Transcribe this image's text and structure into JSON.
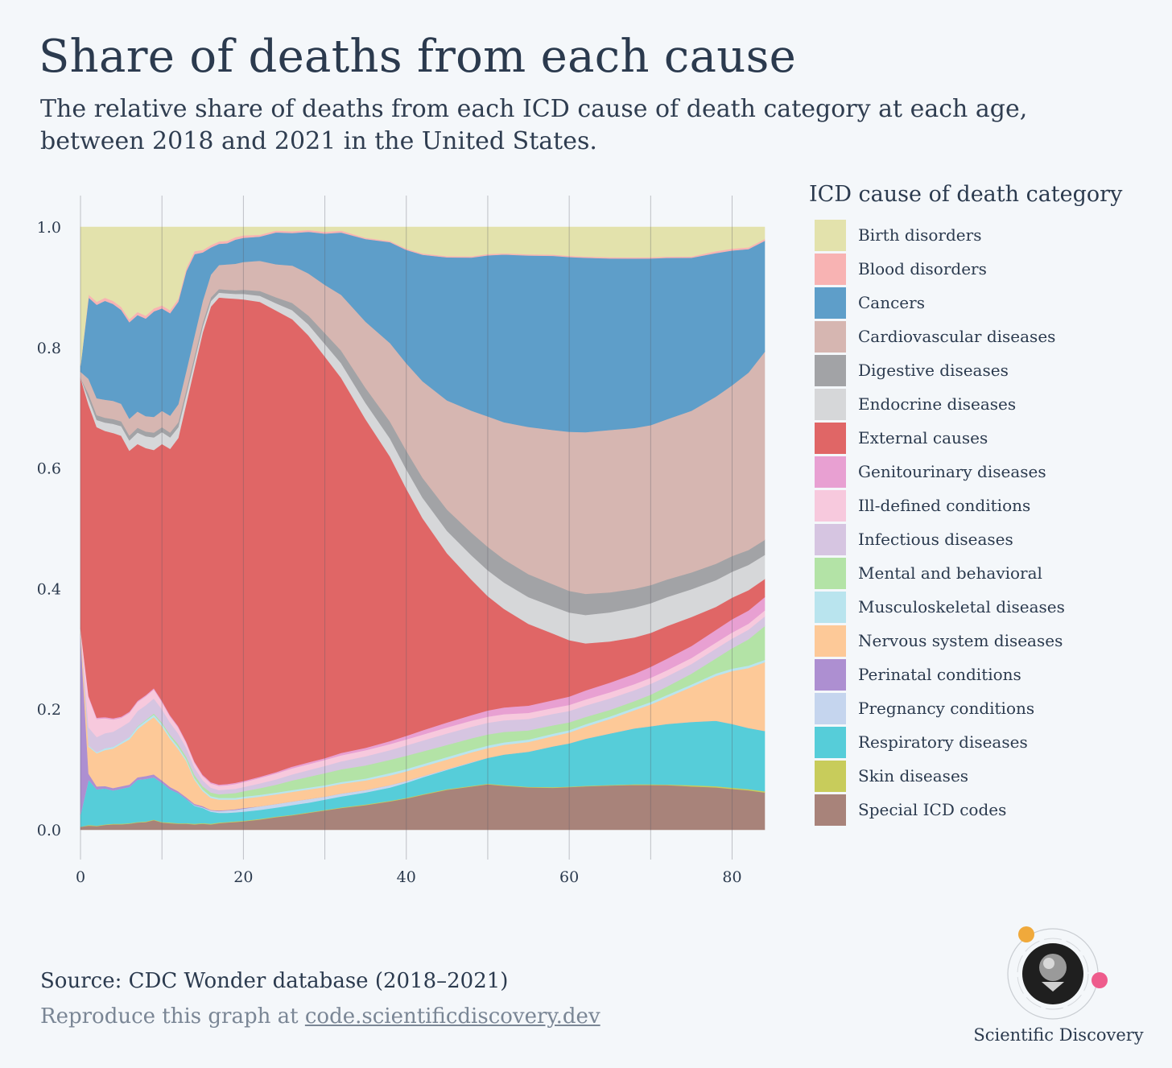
{
  "title": "Share of deaths from each cause",
  "subtitle": "The relative share of deaths from each ICD cause of death category at each age, between 2018 and 2021 in the United States.",
  "legend_title": "ICD cause of death category",
  "source": "Source: CDC Wonder database (2018–2021)",
  "reproduce_prefix": "Reproduce this graph at ",
  "reproduce_link": "code.scientificdiscovery.dev",
  "brand": "Scientific Discovery",
  "chart_data": {
    "type": "area",
    "stacked": true,
    "title": "",
    "xlabel": "",
    "ylabel": "",
    "xlim": [
      0,
      84
    ],
    "ylim": [
      0,
      1
    ],
    "x_ticks": [
      0,
      20,
      40,
      60,
      80
    ],
    "y_ticks": [
      "0.0",
      "0.2",
      "0.4",
      "0.6",
      "0.8",
      "1.0"
    ],
    "grid": "vertical every 10",
    "legend_position": "right",
    "x": [
      0,
      1,
      2,
      3,
      4,
      5,
      6,
      7,
      8,
      9,
      10,
      11,
      12,
      13,
      14,
      15,
      16,
      17,
      18,
      19,
      20,
      22,
      24,
      26,
      28,
      30,
      32,
      35,
      38,
      40,
      42,
      45,
      48,
      50,
      52,
      55,
      58,
      60,
      62,
      65,
      68,
      70,
      72,
      75,
      78,
      80,
      82,
      84
    ],
    "series": [
      {
        "name": "Special ICD codes",
        "color": "#a8837a",
        "values": [
          0.005,
          0.007,
          0.006,
          0.008,
          0.009,
          0.009,
          0.01,
          0.012,
          0.013,
          0.016,
          0.012,
          0.011,
          0.01,
          0.01,
          0.009,
          0.01,
          0.009,
          0.011,
          0.012,
          0.013,
          0.014,
          0.017,
          0.021,
          0.024,
          0.028,
          0.032,
          0.036,
          0.041,
          0.047,
          0.052,
          0.058,
          0.066,
          0.071,
          0.074,
          0.072,
          0.07,
          0.07,
          0.071,
          0.072,
          0.073,
          0.074,
          0.074,
          0.074,
          0.072,
          0.07,
          0.068,
          0.066,
          0.062
        ]
      },
      {
        "name": "Skin diseases",
        "color": "#c8cc5b",
        "values": [
          0.0,
          0.001,
          0.001,
          0.001,
          0.001,
          0.001,
          0.001,
          0.001,
          0.001,
          0.001,
          0.001,
          0.001,
          0.001,
          0.001,
          0.001,
          0.001,
          0.001,
          0.001,
          0.001,
          0.001,
          0.001,
          0.001,
          0.001,
          0.001,
          0.001,
          0.001,
          0.001,
          0.001,
          0.001,
          0.001,
          0.001,
          0.001,
          0.001,
          0.001,
          0.001,
          0.001,
          0.001,
          0.001,
          0.001,
          0.001,
          0.001,
          0.001,
          0.001,
          0.002,
          0.002,
          0.002,
          0.002,
          0.002
        ]
      },
      {
        "name": "Respiratory diseases",
        "color": "#56cdd9",
        "values": [
          0.02,
          0.075,
          0.06,
          0.06,
          0.055,
          0.058,
          0.06,
          0.07,
          0.072,
          0.07,
          0.065,
          0.055,
          0.05,
          0.04,
          0.03,
          0.025,
          0.02,
          0.016,
          0.015,
          0.015,
          0.015,
          0.015,
          0.015,
          0.016,
          0.016,
          0.017,
          0.018,
          0.02,
          0.022,
          0.025,
          0.028,
          0.032,
          0.038,
          0.042,
          0.05,
          0.058,
          0.068,
          0.072,
          0.078,
          0.085,
          0.092,
          0.096,
          0.1,
          0.105,
          0.108,
          0.106,
          0.102,
          0.1
        ]
      },
      {
        "name": "Pregnancy conditions",
        "color": "#c5d5ee",
        "values": [
          0.0,
          0.0,
          0.0,
          0.0,
          0.0,
          0.0,
          0.0,
          0.0,
          0.0,
          0.0,
          0.0,
          0.0,
          0.0,
          0.0,
          0.001,
          0.001,
          0.002,
          0.003,
          0.004,
          0.004,
          0.005,
          0.006,
          0.006,
          0.006,
          0.006,
          0.005,
          0.005,
          0.004,
          0.004,
          0.003,
          0.002,
          0.001,
          0.001,
          0.0,
          0.0,
          0.0,
          0.0,
          0.0,
          0.0,
          0.0,
          0.0,
          0.0,
          0.0,
          0.0,
          0.0,
          0.0,
          0.0,
          0.0
        ]
      },
      {
        "name": "Perinatal conditions",
        "color": "#ad8fd1",
        "values": [
          0.3,
          0.01,
          0.005,
          0.004,
          0.004,
          0.004,
          0.004,
          0.004,
          0.005,
          0.005,
          0.004,
          0.004,
          0.003,
          0.003,
          0.002,
          0.002,
          0.001,
          0.001,
          0.001,
          0.001,
          0.001,
          0.0,
          0.0,
          0.0,
          0.0,
          0.0,
          0.0,
          0.0,
          0.0,
          0.0,
          0.0,
          0.0,
          0.0,
          0.0,
          0.0,
          0.0,
          0.0,
          0.0,
          0.0,
          0.0,
          0.0,
          0.0,
          0.0,
          0.0,
          0.0,
          0.0,
          0.0,
          0.0
        ]
      },
      {
        "name": "Nervous system diseases",
        "color": "#fdc998",
        "values": [
          0.01,
          0.045,
          0.055,
          0.06,
          0.065,
          0.07,
          0.075,
          0.08,
          0.09,
          0.095,
          0.09,
          0.08,
          0.07,
          0.06,
          0.04,
          0.025,
          0.02,
          0.018,
          0.017,
          0.016,
          0.016,
          0.016,
          0.016,
          0.016,
          0.016,
          0.016,
          0.016,
          0.016,
          0.016,
          0.016,
          0.016,
          0.016,
          0.016,
          0.016,
          0.016,
          0.016,
          0.017,
          0.018,
          0.02,
          0.024,
          0.03,
          0.036,
          0.044,
          0.058,
          0.074,
          0.088,
          0.1,
          0.114
        ]
      },
      {
        "name": "Musculoskeletal diseases",
        "color": "#b9e4ee",
        "values": [
          0.0,
          0.002,
          0.002,
          0.003,
          0.003,
          0.003,
          0.004,
          0.004,
          0.004,
          0.004,
          0.004,
          0.004,
          0.004,
          0.003,
          0.003,
          0.003,
          0.003,
          0.003,
          0.003,
          0.003,
          0.003,
          0.003,
          0.003,
          0.003,
          0.003,
          0.003,
          0.003,
          0.003,
          0.004,
          0.004,
          0.004,
          0.004,
          0.004,
          0.004,
          0.004,
          0.004,
          0.004,
          0.004,
          0.004,
          0.004,
          0.004,
          0.004,
          0.004,
          0.004,
          0.004,
          0.004,
          0.004,
          0.004
        ]
      },
      {
        "name": "Mental and behavioral",
        "color": "#b3e3a6",
        "values": [
          0.0,
          0.0,
          0.0,
          0.0,
          0.0,
          0.0,
          0.0,
          0.001,
          0.001,
          0.002,
          0.002,
          0.003,
          0.004,
          0.004,
          0.005,
          0.005,
          0.006,
          0.006,
          0.007,
          0.008,
          0.009,
          0.011,
          0.013,
          0.016,
          0.018,
          0.02,
          0.021,
          0.022,
          0.022,
          0.022,
          0.021,
          0.02,
          0.019,
          0.018,
          0.017,
          0.015,
          0.014,
          0.013,
          0.012,
          0.011,
          0.011,
          0.012,
          0.014,
          0.018,
          0.025,
          0.034,
          0.044,
          0.056
        ]
      },
      {
        "name": "Infectious diseases",
        "color": "#d6c5e1",
        "values": [
          0.0,
          0.03,
          0.025,
          0.025,
          0.025,
          0.025,
          0.025,
          0.025,
          0.025,
          0.025,
          0.022,
          0.02,
          0.018,
          0.015,
          0.012,
          0.01,
          0.008,
          0.007,
          0.007,
          0.007,
          0.007,
          0.008,
          0.009,
          0.01,
          0.011,
          0.012,
          0.013,
          0.015,
          0.016,
          0.017,
          0.018,
          0.019,
          0.019,
          0.019,
          0.019,
          0.019,
          0.019,
          0.019,
          0.019,
          0.019,
          0.018,
          0.018,
          0.017,
          0.016,
          0.016,
          0.016,
          0.016,
          0.016
        ]
      },
      {
        "name": "Ill-defined conditions",
        "color": "#f7c9dd",
        "values": [
          0.0,
          0.05,
          0.03,
          0.025,
          0.02,
          0.015,
          0.015,
          0.015,
          0.015,
          0.015,
          0.012,
          0.01,
          0.01,
          0.008,
          0.008,
          0.007,
          0.007,
          0.007,
          0.007,
          0.008,
          0.008,
          0.009,
          0.01,
          0.01,
          0.01,
          0.01,
          0.01,
          0.01,
          0.01,
          0.01,
          0.01,
          0.01,
          0.01,
          0.01,
          0.01,
          0.01,
          0.01,
          0.01,
          0.01,
          0.01,
          0.01,
          0.01,
          0.01,
          0.01,
          0.01,
          0.01,
          0.01,
          0.01
        ]
      },
      {
        "name": "Genitourinary diseases",
        "color": "#e8a0d2",
        "values": [
          0.0,
          0.002,
          0.002,
          0.002,
          0.002,
          0.002,
          0.002,
          0.002,
          0.002,
          0.002,
          0.002,
          0.002,
          0.002,
          0.002,
          0.002,
          0.002,
          0.002,
          0.002,
          0.002,
          0.002,
          0.002,
          0.002,
          0.002,
          0.003,
          0.003,
          0.003,
          0.004,
          0.004,
          0.005,
          0.006,
          0.007,
          0.008,
          0.009,
          0.01,
          0.011,
          0.012,
          0.013,
          0.014,
          0.015,
          0.016,
          0.017,
          0.018,
          0.019,
          0.02,
          0.021,
          0.022,
          0.022,
          0.022
        ]
      },
      {
        "name": "External causes",
        "color": "#e06666",
        "values": [
          0.415,
          0.483,
          0.482,
          0.477,
          0.471,
          0.464,
          0.433,
          0.426,
          0.418,
          0.395,
          0.426,
          0.442,
          0.478,
          0.562,
          0.655,
          0.73,
          0.789,
          0.808,
          0.806,
          0.803,
          0.799,
          0.788,
          0.769,
          0.742,
          0.708,
          0.666,
          0.62,
          0.545,
          0.471,
          0.41,
          0.352,
          0.279,
          0.222,
          0.186,
          0.161,
          0.135,
          0.111,
          0.094,
          0.078,
          0.068,
          0.06,
          0.056,
          0.054,
          0.048,
          0.038,
          0.036,
          0.034,
          0.03
        ]
      },
      {
        "name": "Endocrine diseases",
        "color": "#d6d7d9",
        "values": [
          0.0,
          0.01,
          0.012,
          0.014,
          0.015,
          0.016,
          0.017,
          0.019,
          0.02,
          0.021,
          0.02,
          0.019,
          0.018,
          0.015,
          0.012,
          0.01,
          0.009,
          0.008,
          0.008,
          0.008,
          0.009,
          0.01,
          0.012,
          0.015,
          0.018,
          0.021,
          0.024,
          0.027,
          0.03,
          0.032,
          0.034,
          0.037,
          0.04,
          0.042,
          0.043,
          0.044,
          0.045,
          0.046,
          0.047,
          0.048,
          0.049,
          0.049,
          0.048,
          0.046,
          0.044,
          0.043,
          0.042,
          0.04
        ]
      },
      {
        "name": "Digestive diseases",
        "color": "#a2a3a6",
        "values": [
          0.0,
          0.008,
          0.008,
          0.008,
          0.008,
          0.008,
          0.008,
          0.008,
          0.008,
          0.008,
          0.008,
          0.008,
          0.008,
          0.007,
          0.007,
          0.006,
          0.006,
          0.006,
          0.006,
          0.006,
          0.007,
          0.008,
          0.01,
          0.012,
          0.015,
          0.018,
          0.021,
          0.025,
          0.028,
          0.031,
          0.033,
          0.035,
          0.037,
          0.038,
          0.038,
          0.038,
          0.037,
          0.036,
          0.035,
          0.033,
          0.031,
          0.03,
          0.029,
          0.028,
          0.027,
          0.026,
          0.025,
          0.025
        ]
      },
      {
        "name": "Cardiovascular diseases",
        "color": "#d6b6b1",
        "values": [
          0.01,
          0.025,
          0.028,
          0.03,
          0.03,
          0.029,
          0.028,
          0.027,
          0.026,
          0.026,
          0.027,
          0.028,
          0.03,
          0.032,
          0.034,
          0.036,
          0.038,
          0.04,
          0.042,
          0.044,
          0.046,
          0.05,
          0.055,
          0.062,
          0.07,
          0.08,
          0.092,
          0.11,
          0.13,
          0.145,
          0.16,
          0.18,
          0.2,
          0.212,
          0.224,
          0.243,
          0.257,
          0.265,
          0.268,
          0.268,
          0.265,
          0.264,
          0.265,
          0.268,
          0.276,
          0.284,
          0.296,
          0.312
        ]
      },
      {
        "name": "Cancers",
        "color": "#5e9ec9",
        "values": [
          0.01,
          0.135,
          0.155,
          0.165,
          0.16,
          0.155,
          0.16,
          0.16,
          0.165,
          0.175,
          0.17,
          0.17,
          0.17,
          0.165,
          0.135,
          0.08,
          0.045,
          0.035,
          0.035,
          0.04,
          0.04,
          0.04,
          0.053,
          0.054,
          0.069,
          0.085,
          0.103,
          0.137,
          0.167,
          0.188,
          0.21,
          0.236,
          0.251,
          0.262,
          0.274,
          0.283,
          0.29,
          0.291,
          0.289,
          0.283,
          0.279,
          0.275,
          0.267,
          0.254,
          0.237,
          0.224,
          0.206,
          0.184
        ]
      },
      {
        "name": "Blood disorders",
        "color": "#f8b3b3",
        "values": [
          0.0,
          0.005,
          0.005,
          0.005,
          0.005,
          0.005,
          0.005,
          0.005,
          0.005,
          0.005,
          0.005,
          0.005,
          0.005,
          0.005,
          0.005,
          0.004,
          0.004,
          0.004,
          0.004,
          0.004,
          0.004,
          0.003,
          0.003,
          0.003,
          0.003,
          0.003,
          0.003,
          0.002,
          0.002,
          0.002,
          0.002,
          0.002,
          0.002,
          0.002,
          0.002,
          0.002,
          0.002,
          0.002,
          0.002,
          0.002,
          0.002,
          0.002,
          0.002,
          0.002,
          0.003,
          0.003,
          0.003,
          0.003
        ]
      },
      {
        "name": "Birth disorders",
        "color": "#e3e2ac",
        "values": [
          0.23,
          0.112,
          0.124,
          0.118,
          0.122,
          0.132,
          0.153,
          0.141,
          0.15,
          0.135,
          0.13,
          0.138,
          0.119,
          0.068,
          0.04,
          0.038,
          0.03,
          0.024,
          0.023,
          0.017,
          0.014,
          0.013,
          0.006,
          0.007,
          0.005,
          0.008,
          0.006,
          0.018,
          0.023,
          0.036,
          0.044,
          0.048,
          0.048,
          0.044,
          0.043,
          0.045,
          0.046,
          0.048,
          0.049,
          0.05,
          0.05,
          0.05,
          0.049,
          0.049,
          0.04,
          0.036,
          0.034,
          0.02
        ]
      }
    ]
  }
}
